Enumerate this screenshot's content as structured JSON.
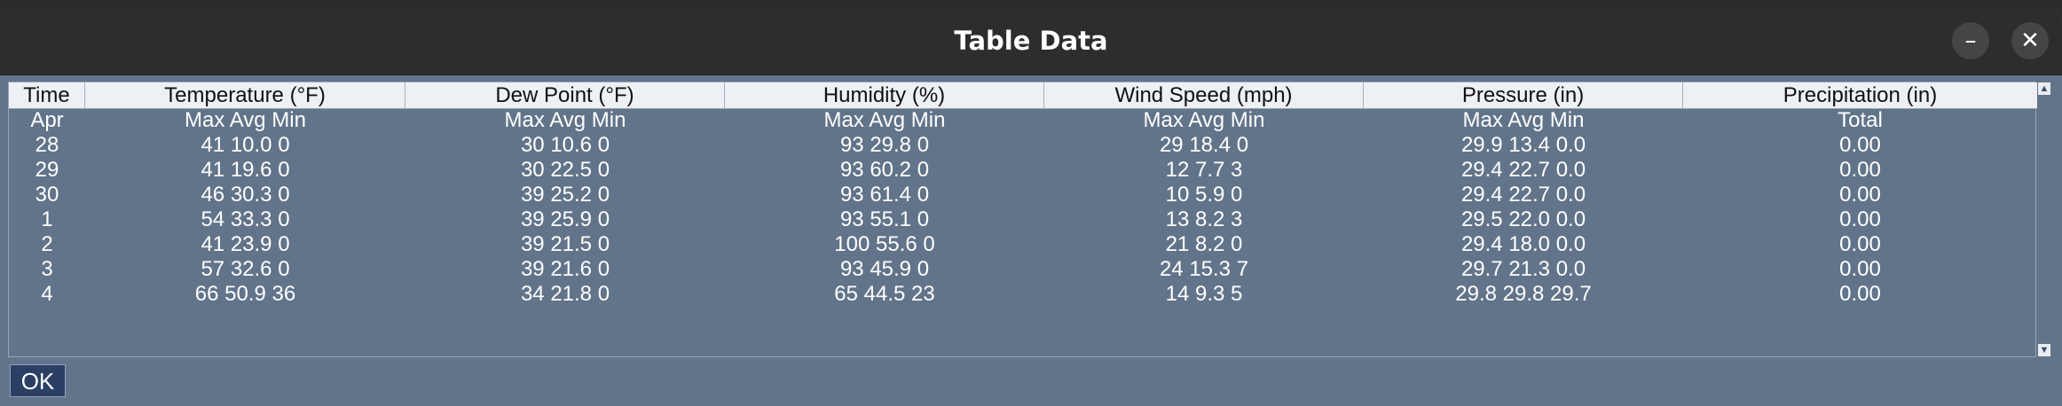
{
  "window": {
    "title": "Table Data",
    "minimize_label": "–",
    "close_label": "✕"
  },
  "table": {
    "headers": [
      "Time",
      "Temperature (°F)",
      "Dew Point (°F)",
      "Humidity (%)",
      "Wind Speed (mph)",
      "Pressure (in)",
      "Precipitation (in)"
    ],
    "rows": [
      [
        "Apr",
        "Max Avg Min",
        "Max Avg Min",
        "Max Avg Min",
        "Max Avg Min",
        "Max Avg Min",
        "Total"
      ],
      [
        "28",
        "41 10.0 0",
        "30 10.6 0",
        "93 29.8 0",
        "29 18.4 0",
        "29.9 13.4 0.0",
        "0.00"
      ],
      [
        "29",
        "41 19.6 0",
        "30 22.5 0",
        "93 60.2 0",
        "12 7.7 3",
        "29.4 22.7 0.0",
        "0.00"
      ],
      [
        "30",
        "46 30.3 0",
        "39 25.2 0",
        "93 61.4 0",
        "10 5.9 0",
        "29.4 22.7 0.0",
        "0.00"
      ],
      [
        "1",
        "54 33.3 0",
        "39 25.9 0",
        "93 55.1 0",
        "13 8.2 3",
        "29.5 22.0 0.0",
        "0.00"
      ],
      [
        "2",
        "41 23.9 0",
        "39 21.5 0",
        "100 55.6 0",
        "21 8.2 0",
        "29.4 18.0 0.0",
        "0.00"
      ],
      [
        "3",
        "57 32.6 0",
        "39 21.6 0",
        "93 45.9 0",
        "24 15.3 7",
        "29.7 21.3 0.0",
        "0.00"
      ],
      [
        "4",
        "66 50.9 36",
        "34 21.8 0",
        "65 44.5 23",
        "14 9.3 5",
        "29.8 29.8 29.7",
        "0.00"
      ]
    ]
  },
  "scrollbar": {
    "up_label": "▲",
    "down_label": "▼"
  },
  "buttons": {
    "ok_label": "OK"
  }
}
